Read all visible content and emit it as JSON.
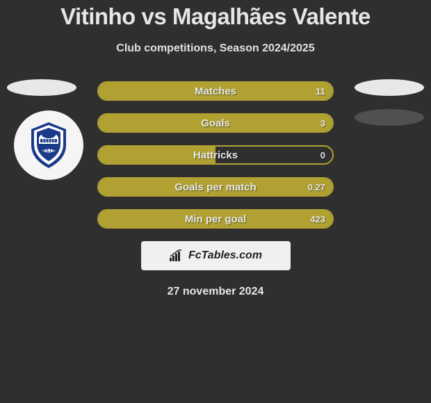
{
  "title": "Vitinho vs Magalhães Valente",
  "subtitle": "Club competitions, Season 2024/2025",
  "colors": {
    "bar_border": "#b1a232",
    "bar_fill": "#b0a132",
    "background": "#2f2f2f",
    "text": "#e6e6e6",
    "ellipse_light": "#e8e8e8",
    "ellipse_dark": "#505050",
    "badge_bg": "#f5f5f5",
    "brand_bg": "#f0f0f0"
  },
  "stats": [
    {
      "label": "Matches",
      "value": "11",
      "fill_pct": 100
    },
    {
      "label": "Goals",
      "value": "3",
      "fill_pct": 100
    },
    {
      "label": "Hattricks",
      "value": "0",
      "fill_pct": 50
    },
    {
      "label": "Goals per match",
      "value": "0.27",
      "fill_pct": 100
    },
    {
      "label": "Min per goal",
      "value": "423",
      "fill_pct": 100
    }
  ],
  "brand": "FcTables.com",
  "date": "27 november 2024",
  "crest": {
    "text": "P.S.I.S",
    "blue": "#1a3a8a",
    "white": "#ffffff"
  }
}
